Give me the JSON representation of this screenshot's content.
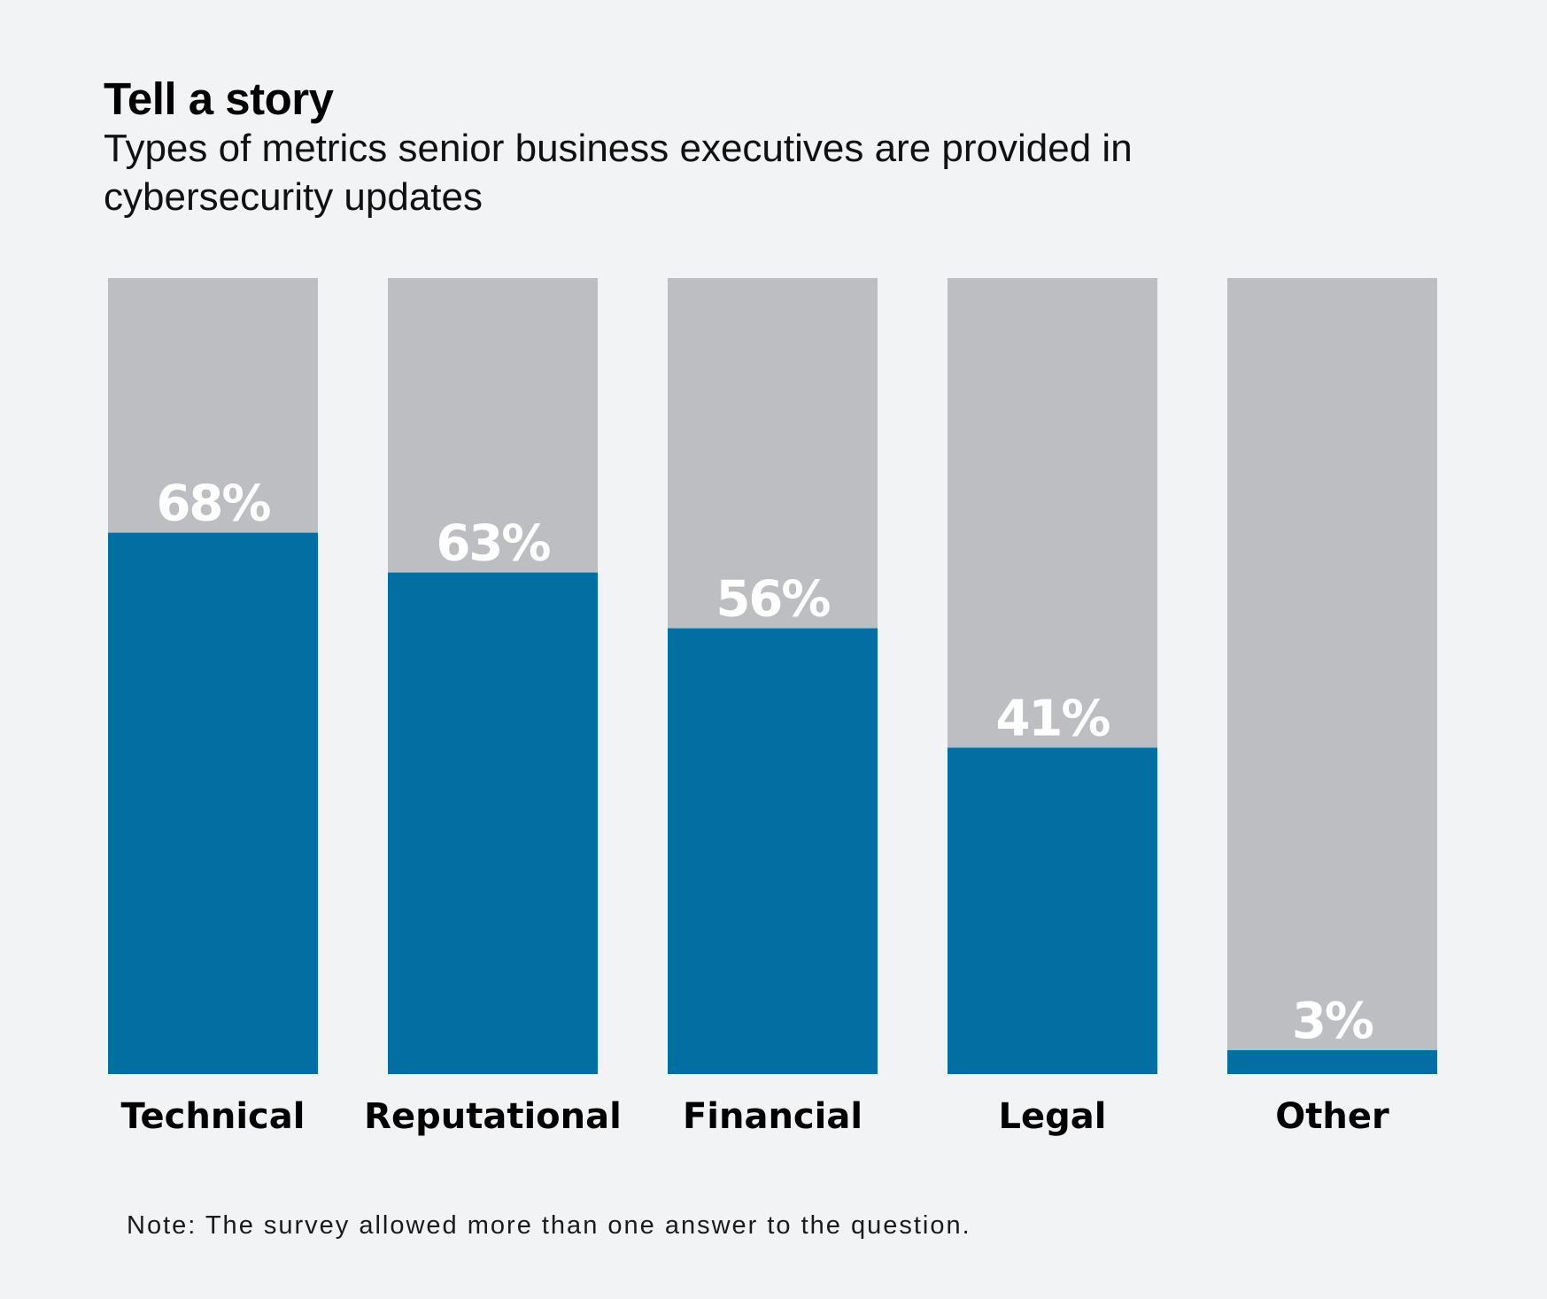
{
  "header": {
    "title": "Tell a story",
    "subtitle": "Types of metrics senior business executives are provided in cybersecurity updates"
  },
  "footer": {
    "note": "Note: The survey allowed more than one answer to the question."
  },
  "colors": {
    "background": "#f2f3f5",
    "bar_fill": "#036ea1",
    "bar_track": "#bdbec2",
    "value_label": "#ffffff",
    "text": "#000000"
  },
  "chart_data": {
    "type": "bar",
    "title": "Tell a story",
    "subtitle": "Types of metrics senior business executives are provided in cybersecurity updates",
    "categories": [
      "Technical",
      "Reputational",
      "Financial",
      "Legal",
      "Other"
    ],
    "values": [
      68,
      63,
      56,
      41,
      3
    ],
    "value_labels": [
      "68%",
      "63%",
      "56%",
      "41%",
      "3%"
    ],
    "unit": "%",
    "ylim": [
      0,
      100
    ],
    "xlabel": "",
    "ylabel": "",
    "grid": false,
    "legend": "none"
  }
}
